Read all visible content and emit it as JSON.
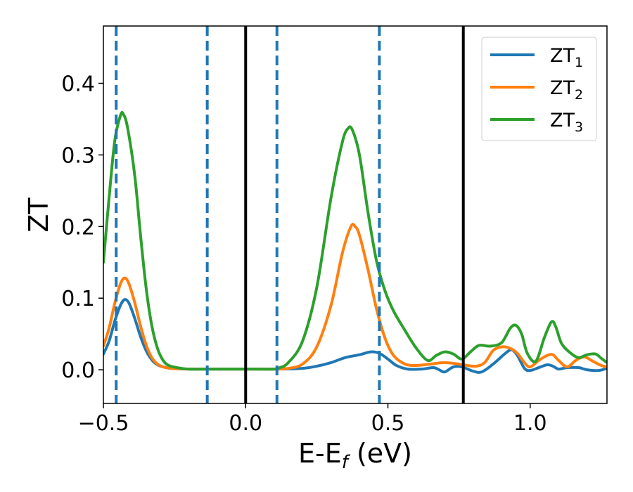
{
  "chart_data": {
    "type": "line",
    "xlabel": "E-E",
    "xlabel_sub": "f",
    "xlabel_unit": " (eV)",
    "ylabel": "ZT",
    "xlim": [
      -0.5,
      1.27
    ],
    "ylim": [
      -0.047,
      0.48
    ],
    "xticks": [
      -0.5,
      0.0,
      0.5,
      1.0
    ],
    "xtick_labels": [
      "−0.5",
      "0.0",
      "0.5",
      "1.0"
    ],
    "yticks": [
      0.0,
      0.1,
      0.2,
      0.3,
      0.4
    ],
    "ytick_labels": [
      "0.0",
      "0.1",
      "0.2",
      "0.3",
      "0.4"
    ],
    "grid": false,
    "legend_position": "top-right",
    "vlines_dashed": [
      -0.455,
      -0.135,
      0.11,
      0.47
    ],
    "vlines_solid": [
      0.0,
      0.765
    ],
    "vline_dashed_color": "#1f77b4",
    "vline_solid_color": "#000000",
    "series": [
      {
        "name": "ZT",
        "sub": "1",
        "color": "#1f77b4",
        "points": [
          [
            -0.5,
            0.022
          ],
          [
            -0.48,
            0.04
          ],
          [
            -0.46,
            0.068
          ],
          [
            -0.44,
            0.09
          ],
          [
            -0.425,
            0.098
          ],
          [
            -0.41,
            0.093
          ],
          [
            -0.39,
            0.072
          ],
          [
            -0.37,
            0.047
          ],
          [
            -0.35,
            0.027
          ],
          [
            -0.33,
            0.014
          ],
          [
            -0.31,
            0.007
          ],
          [
            -0.29,
            0.004
          ],
          [
            -0.26,
            0.002
          ],
          [
            -0.2,
            0.001
          ],
          [
            -0.1,
            0.001
          ],
          [
            0.0,
            0.001
          ],
          [
            0.1,
            0.001
          ],
          [
            0.2,
            0.002
          ],
          [
            0.25,
            0.005
          ],
          [
            0.3,
            0.01
          ],
          [
            0.35,
            0.017
          ],
          [
            0.4,
            0.021
          ],
          [
            0.44,
            0.025
          ],
          [
            0.47,
            0.023
          ],
          [
            0.5,
            0.015
          ],
          [
            0.53,
            0.006
          ],
          [
            0.57,
            0.001
          ],
          [
            0.62,
            0.001
          ],
          [
            0.66,
            0.003
          ],
          [
            0.68,
            0.0
          ],
          [
            0.7,
            -0.003
          ],
          [
            0.73,
            0.004
          ],
          [
            0.76,
            0.004
          ],
          [
            0.8,
            -0.002
          ],
          [
            0.83,
            -0.003
          ],
          [
            0.87,
            0.008
          ],
          [
            0.91,
            0.022
          ],
          [
            0.935,
            0.028
          ],
          [
            0.955,
            0.02
          ],
          [
            0.98,
            0.002
          ],
          [
            1.0,
            -0.001
          ],
          [
            1.03,
            0.003
          ],
          [
            1.06,
            0.007
          ],
          [
            1.08,
            0.005
          ],
          [
            1.1,
            0.001
          ],
          [
            1.13,
            0.003
          ],
          [
            1.17,
            0.003
          ],
          [
            1.2,
            0.0
          ],
          [
            1.24,
            -0.001
          ],
          [
            1.27,
            0.002
          ]
        ]
      },
      {
        "name": "ZT",
        "sub": "2",
        "color": "#ff7f0e",
        "points": [
          [
            -0.5,
            0.033
          ],
          [
            -0.48,
            0.058
          ],
          [
            -0.46,
            0.093
          ],
          [
            -0.44,
            0.12
          ],
          [
            -0.425,
            0.128
          ],
          [
            -0.41,
            0.12
          ],
          [
            -0.39,
            0.094
          ],
          [
            -0.37,
            0.062
          ],
          [
            -0.35,
            0.035
          ],
          [
            -0.33,
            0.017
          ],
          [
            -0.31,
            0.008
          ],
          [
            -0.29,
            0.004
          ],
          [
            -0.26,
            0.002
          ],
          [
            -0.2,
            0.001
          ],
          [
            -0.1,
            0.001
          ],
          [
            0.0,
            0.001
          ],
          [
            0.1,
            0.001
          ],
          [
            0.15,
            0.002
          ],
          [
            0.2,
            0.008
          ],
          [
            0.25,
            0.032
          ],
          [
            0.3,
            0.09
          ],
          [
            0.34,
            0.163
          ],
          [
            0.37,
            0.2
          ],
          [
            0.385,
            0.2
          ],
          [
            0.4,
            0.188
          ],
          [
            0.43,
            0.14
          ],
          [
            0.46,
            0.085
          ],
          [
            0.49,
            0.044
          ],
          [
            0.52,
            0.02
          ],
          [
            0.56,
            0.008
          ],
          [
            0.6,
            0.006
          ],
          [
            0.65,
            0.008
          ],
          [
            0.7,
            0.01
          ],
          [
            0.75,
            0.008
          ],
          [
            0.78,
            0.006
          ],
          [
            0.81,
            0.005
          ],
          [
            0.84,
            0.01
          ],
          [
            0.87,
            0.027
          ],
          [
            0.9,
            0.032
          ],
          [
            0.93,
            0.03
          ],
          [
            0.955,
            0.023
          ],
          [
            0.98,
            0.01
          ],
          [
            1.0,
            0.004
          ],
          [
            1.03,
            0.013
          ],
          [
            1.06,
            0.02
          ],
          [
            1.08,
            0.021
          ],
          [
            1.1,
            0.013
          ],
          [
            1.13,
            0.004
          ],
          [
            1.16,
            0.013
          ],
          [
            1.19,
            0.018
          ],
          [
            1.22,
            0.012
          ],
          [
            1.25,
            0.006
          ],
          [
            1.27,
            0.004
          ]
        ]
      },
      {
        "name": "ZT",
        "sub": "3",
        "color": "#2ca02c",
        "points": [
          [
            -0.5,
            0.15
          ],
          [
            -0.48,
            0.24
          ],
          [
            -0.46,
            0.32
          ],
          [
            -0.44,
            0.355
          ],
          [
            -0.43,
            0.357
          ],
          [
            -0.415,
            0.338
          ],
          [
            -0.39,
            0.272
          ],
          [
            -0.37,
            0.19
          ],
          [
            -0.35,
            0.115
          ],
          [
            -0.33,
            0.062
          ],
          [
            -0.31,
            0.03
          ],
          [
            -0.29,
            0.013
          ],
          [
            -0.27,
            0.006
          ],
          [
            -0.24,
            0.003
          ],
          [
            -0.2,
            0.001
          ],
          [
            -0.1,
            0.001
          ],
          [
            0.0,
            0.001
          ],
          [
            0.1,
            0.001
          ],
          [
            0.12,
            0.003
          ],
          [
            0.15,
            0.01
          ],
          [
            0.2,
            0.04
          ],
          [
            0.25,
            0.115
          ],
          [
            0.3,
            0.24
          ],
          [
            0.34,
            0.318
          ],
          [
            0.36,
            0.337
          ],
          [
            0.375,
            0.335
          ],
          [
            0.4,
            0.3
          ],
          [
            0.43,
            0.22
          ],
          [
            0.46,
            0.152
          ],
          [
            0.49,
            0.11
          ],
          [
            0.52,
            0.082
          ],
          [
            0.56,
            0.055
          ],
          [
            0.6,
            0.03
          ],
          [
            0.64,
            0.013
          ],
          [
            0.67,
            0.02
          ],
          [
            0.7,
            0.025
          ],
          [
            0.73,
            0.022
          ],
          [
            0.76,
            0.015
          ],
          [
            0.79,
            0.025
          ],
          [
            0.82,
            0.034
          ],
          [
            0.86,
            0.033
          ],
          [
            0.9,
            0.038
          ],
          [
            0.93,
            0.058
          ],
          [
            0.95,
            0.062
          ],
          [
            0.97,
            0.05
          ],
          [
            0.99,
            0.023
          ],
          [
            1.02,
            0.012
          ],
          [
            1.05,
            0.045
          ],
          [
            1.075,
            0.067
          ],
          [
            1.09,
            0.06
          ],
          [
            1.11,
            0.037
          ],
          [
            1.14,
            0.024
          ],
          [
            1.17,
            0.017
          ],
          [
            1.2,
            0.021
          ],
          [
            1.23,
            0.022
          ],
          [
            1.25,
            0.016
          ],
          [
            1.27,
            0.01
          ]
        ]
      }
    ]
  }
}
